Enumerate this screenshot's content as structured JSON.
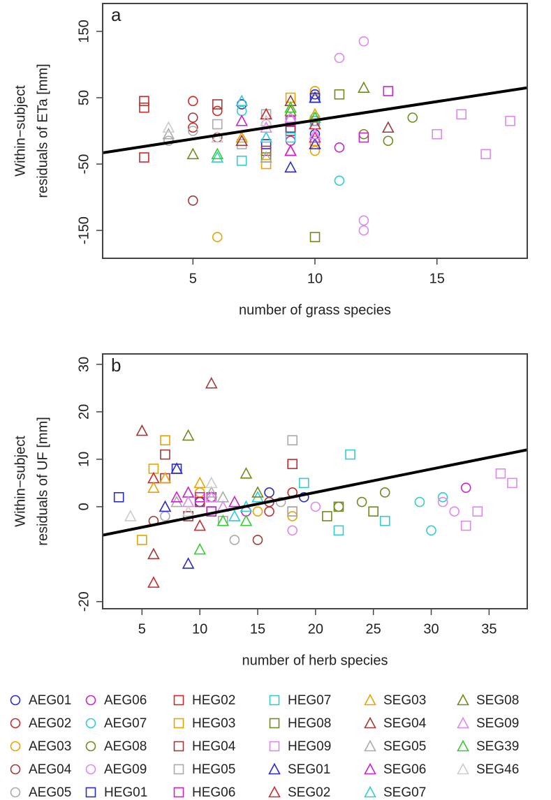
{
  "legend": {
    "series": [
      {
        "name": "AEG01",
        "color": "#2a2acc",
        "marker": "circle"
      },
      {
        "name": "AEG02",
        "color": "#cc2a2a",
        "marker": "circle"
      },
      {
        "name": "AEG03",
        "color": "#e8a300",
        "marker": "circle"
      },
      {
        "name": "AEG04",
        "color": "#a03a3a",
        "marker": "circle"
      },
      {
        "name": "AEG05",
        "color": "#aaaaaa",
        "marker": "circle"
      },
      {
        "name": "AEG06",
        "color": "#cc22cc",
        "marker": "circle"
      },
      {
        "name": "AEG07",
        "color": "#33cccc",
        "marker": "circle"
      },
      {
        "name": "AEG08",
        "color": "#6f8a1f",
        "marker": "circle"
      },
      {
        "name": "AEG09",
        "color": "#dd88ee",
        "marker": "circle"
      },
      {
        "name": "HEG01",
        "color": "#2a2acc",
        "marker": "square"
      },
      {
        "name": "HEG02",
        "color": "#cc2a2a",
        "marker": "square"
      },
      {
        "name": "HEG03",
        "color": "#e8a300",
        "marker": "square"
      },
      {
        "name": "HEG04",
        "color": "#a03a3a",
        "marker": "square"
      },
      {
        "name": "HEG05",
        "color": "#aaaaaa",
        "marker": "square"
      },
      {
        "name": "HEG06",
        "color": "#cc22cc",
        "marker": "square"
      },
      {
        "name": "HEG07",
        "color": "#33cccc",
        "marker": "square"
      },
      {
        "name": "HEG08",
        "color": "#6f8a1f",
        "marker": "square"
      },
      {
        "name": "HEG09",
        "color": "#dd88ee",
        "marker": "square"
      },
      {
        "name": "SEG01",
        "color": "#2a2acc",
        "marker": "triangle"
      },
      {
        "name": "SEG02",
        "color": "#cc2a2a",
        "marker": "triangle"
      },
      {
        "name": "SEG03",
        "color": "#e8a300",
        "marker": "triangle"
      },
      {
        "name": "SEG04",
        "color": "#a03a3a",
        "marker": "triangle"
      },
      {
        "name": "SEG05",
        "color": "#aaaaaa",
        "marker": "triangle"
      },
      {
        "name": "SEG06",
        "color": "#cc22cc",
        "marker": "triangle"
      },
      {
        "name": "SEG07",
        "color": "#33cccc",
        "marker": "triangle"
      },
      {
        "name": "SEG08",
        "color": "#6f8a1f",
        "marker": "triangle"
      },
      {
        "name": "SEG09",
        "color": "#dd88ee",
        "marker": "triangle"
      },
      {
        "name": "SEG39",
        "color": "#33cc33",
        "marker": "triangle"
      },
      {
        "name": "SEG46",
        "color": "#cccccc",
        "marker": "triangle"
      }
    ]
  },
  "chart_data": [
    {
      "type": "scatter",
      "panel": "a",
      "xlabel": "number of grass species",
      "ylabel": [
        "Within−subject",
        "residuals of ETa [mm]"
      ],
      "xlim": [
        1.3,
        18.7
      ],
      "ylim": [
        -192,
        192
      ],
      "xticks": [
        5,
        10,
        15
      ],
      "yticks": [
        -150,
        -50,
        50,
        150
      ],
      "trend": {
        "x": [
          1.3,
          18.7
        ],
        "values": [
          -33,
          65
        ]
      },
      "series": [
        {
          "x": [
            7,
            10,
            10
          ],
          "values": [
            40,
            -5,
            55
          ]
        },
        {
          "x": [
            5,
            5,
            6
          ],
          "values": [
            45,
            5,
            30
          ]
        },
        {
          "x": [
            6,
            10,
            10
          ],
          "values": [
            -160,
            60,
            -30
          ]
        },
        {
          "x": [
            5,
            5,
            6
          ],
          "values": [
            -105,
            20,
            -10
          ]
        },
        {
          "x": [
            4,
            5,
            8
          ],
          "values": [
            -15,
            0,
            10
          ]
        },
        {
          "x": [
            9,
            10,
            11
          ],
          "values": [
            -15,
            15,
            -25
          ]
        },
        {
          "x": [
            7,
            10,
            11
          ],
          "values": [
            30,
            20,
            -75
          ]
        },
        {
          "x": [
            12,
            13,
            14
          ],
          "values": [
            -5,
            -15,
            20
          ]
        },
        {
          "x": [
            11,
            12,
            12,
            12
          ],
          "values": [
            110,
            135,
            -135,
            -150
          ]
        },
        {
          "x": [
            8,
            9,
            10
          ],
          "values": [
            -20,
            5,
            50
          ]
        },
        {
          "x": [
            3,
            3,
            3
          ],
          "values": [
            45,
            35,
            -40
          ]
        },
        {
          "x": [
            8,
            9,
            10
          ],
          "values": [
            -50,
            50,
            -15
          ]
        },
        {
          "x": [
            6,
            8,
            9
          ],
          "values": [
            40,
            -30,
            0
          ]
        },
        {
          "x": [
            6,
            7,
            8
          ],
          "values": [
            10,
            -20,
            25
          ]
        },
        {
          "x": [
            9,
            12,
            13
          ],
          "values": [
            15,
            -10,
            60
          ]
        },
        {
          "x": [
            7,
            9,
            10
          ],
          "values": [
            -45,
            -10,
            15
          ]
        },
        {
          "x": [
            8,
            10,
            11
          ],
          "values": [
            -40,
            -160,
            55
          ]
        },
        {
          "x": [
            15,
            16,
            17,
            18
          ],
          "values": [
            -5,
            25,
            -35,
            15
          ]
        },
        {
          "x": [
            9,
            10,
            10
          ],
          "values": [
            -55,
            50,
            -20
          ]
        },
        {
          "x": [
            8,
            9,
            10
          ],
          "values": [
            25,
            -30,
            10
          ]
        },
        {
          "x": [
            7,
            9,
            10
          ],
          "values": [
            -10,
            35,
            25
          ]
        },
        {
          "x": [
            7,
            9,
            13
          ],
          "values": [
            -15,
            45,
            5
          ]
        },
        {
          "x": [
            4,
            8,
            9
          ],
          "values": [
            -5,
            -40,
            20
          ]
        },
        {
          "x": [
            7,
            9,
            10
          ],
          "values": [
            15,
            -30,
            -10
          ]
        },
        {
          "x": [
            6,
            7,
            8
          ],
          "values": [
            -40,
            45,
            -10
          ]
        },
        {
          "x": [
            5,
            9,
            12
          ],
          "values": [
            -35,
            30,
            65
          ]
        },
        {
          "x": [
            8,
            9,
            10
          ],
          "values": [
            5,
            20,
            -5
          ]
        },
        {
          "x": [
            6,
            9,
            10
          ],
          "values": [
            -35,
            35,
            20
          ]
        },
        {
          "x": [
            4,
            6,
            8
          ],
          "values": [
            5,
            -10,
            15
          ]
        }
      ]
    },
    {
      "type": "scatter",
      "panel": "b",
      "xlabel": "number of herb species",
      "ylabel": [
        "Within−subject",
        "residuals of UF [mm]"
      ],
      "xlim": [
        1.6,
        38.3
      ],
      "ylim": [
        -21.5,
        32.2
      ],
      "xticks": [
        5,
        10,
        15,
        20,
        25,
        30,
        35
      ],
      "yticks": [
        -20,
        0,
        10,
        20,
        30
      ],
      "trend": {
        "x": [
          1.6,
          38.3
        ],
        "values": [
          -6,
          12
        ]
      },
      "series": [
        {
          "x": [
            10,
            16,
            19
          ],
          "values": [
            1,
            3,
            2
          ]
        },
        {
          "x": [
            11,
            16,
            18
          ],
          "values": [
            2,
            -1,
            3
          ]
        },
        {
          "x": [
            10,
            15,
            18
          ],
          "values": [
            3,
            -1,
            -2
          ]
        },
        {
          "x": [
            6,
            15,
            16
          ],
          "values": [
            -3,
            -7,
            1
          ]
        },
        {
          "x": [
            7,
            13,
            17
          ],
          "values": [
            -2,
            -7,
            1
          ]
        },
        {
          "x": [
            11,
            14,
            33
          ],
          "values": [
            2,
            -1,
            4
          ]
        },
        {
          "x": [
            29,
            30,
            31
          ],
          "values": [
            1,
            -5,
            2
          ]
        },
        {
          "x": [
            22,
            24,
            26
          ],
          "values": [
            0,
            1,
            3
          ]
        },
        {
          "x": [
            18,
            20,
            31,
            32
          ],
          "values": [
            -5,
            0,
            1,
            -1
          ]
        },
        {
          "x": [
            3,
            8,
            11
          ],
          "values": [
            2,
            8,
            -1
          ]
        },
        {
          "x": [
            10,
            18,
            18
          ],
          "values": [
            1,
            9,
            -1
          ]
        },
        {
          "x": [
            5,
            6,
            7
          ],
          "values": [
            -7,
            8,
            14
          ]
        },
        {
          "x": [
            7,
            7,
            9
          ],
          "values": [
            11,
            6,
            -2
          ]
        },
        {
          "x": [
            12,
            18,
            18
          ],
          "values": [
            -3,
            14,
            -1
          ]
        },
        {
          "x": [
            10,
            11,
            11
          ],
          "values": [
            2,
            2,
            -1
          ]
        },
        {
          "x": [
            19,
            22,
            23,
            26
          ],
          "values": [
            5,
            -5,
            11,
            -3
          ]
        },
        {
          "x": [
            21,
            22,
            25
          ],
          "values": [
            -2,
            0,
            -1
          ]
        },
        {
          "x": [
            33,
            34,
            36,
            37
          ],
          "values": [
            -4,
            -1,
            7,
            5
          ]
        },
        {
          "x": [
            7,
            8,
            9
          ],
          "values": [
            0,
            8,
            -12
          ]
        },
        {
          "x": [
            6,
            6,
            10
          ],
          "values": [
            -16,
            6,
            -4
          ]
        },
        {
          "x": [
            6,
            7,
            10
          ],
          "values": [
            4,
            6,
            5
          ]
        },
        {
          "x": [
            5,
            6,
            11
          ],
          "values": [
            16,
            -10,
            26
          ]
        },
        {
          "x": [
            8,
            11,
            12
          ],
          "values": [
            1,
            3,
            2
          ]
        },
        {
          "x": [
            8,
            9,
            13
          ],
          "values": [
            2,
            3,
            1
          ]
        },
        {
          "x": [
            13,
            14,
            15
          ],
          "values": [
            -2,
            0,
            2
          ]
        },
        {
          "x": [
            9,
            14,
            15
          ],
          "values": [
            15,
            7,
            3
          ]
        },
        {
          "x": [
            9,
            11,
            12
          ],
          "values": [
            1,
            2,
            0
          ]
        },
        {
          "x": [
            10,
            12,
            14
          ],
          "values": [
            -9,
            -3,
            -3
          ]
        },
        {
          "x": [
            4,
            9,
            11
          ],
          "values": [
            -2,
            -1,
            5
          ]
        }
      ]
    }
  ]
}
